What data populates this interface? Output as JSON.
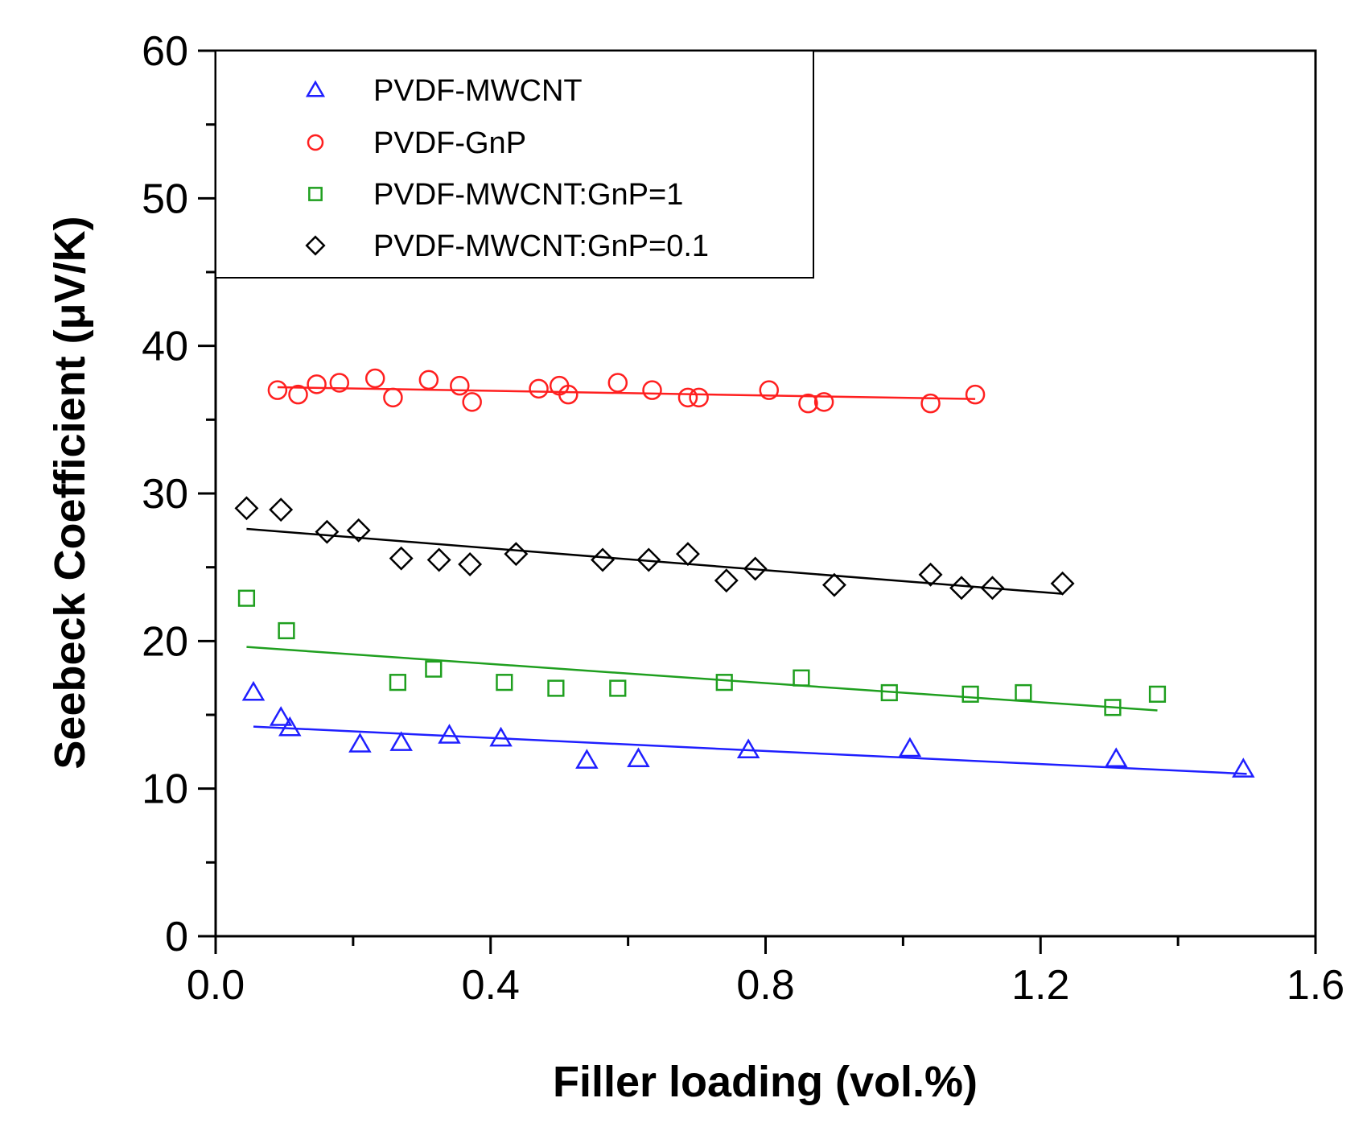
{
  "chart_data": {
    "type": "scatter",
    "title": "",
    "xlabel": "Filler loading (vol.%)",
    "ylabel": "Seebeck Coefficient (μV/K)",
    "xlim": [
      0.0,
      1.6
    ],
    "ylim": [
      0,
      60
    ],
    "x_ticks": [
      "0.0",
      "0.4",
      "0.8",
      "1.2",
      "1.6"
    ],
    "y_ticks": [
      "0",
      "10",
      "20",
      "30",
      "40",
      "50",
      "60"
    ],
    "grid": false,
    "legend_position": "top-left",
    "series": [
      {
        "name": "PVDF-MWCNT",
        "marker": "triangle",
        "color": "#1f1fff",
        "x": [
          0.055,
          0.095,
          0.108,
          0.21,
          0.27,
          0.34,
          0.415,
          0.54,
          0.615,
          0.775,
          1.01,
          1.31,
          1.495
        ],
        "y": [
          16.5,
          14.8,
          14.1,
          13.0,
          13.1,
          13.6,
          13.4,
          11.9,
          12.0,
          12.6,
          12.7,
          12.0,
          11.3
        ],
        "fit": {
          "x": [
            0.055,
            1.5
          ],
          "y": [
            14.2,
            11.0
          ]
        }
      },
      {
        "name": "PVDF-GnP",
        "marker": "circle",
        "color": "#ff1f1f",
        "x": [
          0.09,
          0.12,
          0.147,
          0.18,
          0.232,
          0.258,
          0.31,
          0.355,
          0.373,
          0.47,
          0.5,
          0.513,
          0.585,
          0.635,
          0.687,
          0.703,
          0.805,
          0.862,
          0.885,
          1.04,
          1.105
        ],
        "y": [
          37.0,
          36.7,
          37.4,
          37.5,
          37.8,
          36.5,
          37.7,
          37.3,
          36.2,
          37.1,
          37.3,
          36.7,
          37.5,
          37.0,
          36.5,
          36.5,
          37.0,
          36.1,
          36.2,
          36.1,
          36.7
        ],
        "fit": {
          "x": [
            0.09,
            1.105
          ],
          "y": [
            37.2,
            36.4
          ]
        }
      },
      {
        "name": "PVDF-MWCNT:GnP=1",
        "marker": "square",
        "color": "#1f9f1f",
        "x": [
          0.045,
          0.103,
          0.265,
          0.317,
          0.42,
          0.495,
          0.585,
          0.74,
          0.852,
          0.98,
          1.098,
          1.175,
          1.305,
          1.37
        ],
        "y": [
          22.9,
          20.7,
          17.2,
          18.1,
          17.2,
          16.8,
          16.8,
          17.2,
          17.5,
          16.5,
          16.4,
          16.5,
          15.5,
          16.4
        ],
        "fit": {
          "x": [
            0.045,
            1.37
          ],
          "y": [
            19.6,
            15.3
          ]
        }
      },
      {
        "name": "PVDF-MWCNT:GnP=0.1",
        "marker": "diamond",
        "color": "#000000",
        "x": [
          0.045,
          0.095,
          0.162,
          0.208,
          0.27,
          0.325,
          0.37,
          0.437,
          0.563,
          0.63,
          0.687,
          0.743,
          0.785,
          0.9,
          1.04,
          1.085,
          1.13,
          1.232
        ],
        "y": [
          29.0,
          28.9,
          27.4,
          27.5,
          25.6,
          25.5,
          25.2,
          25.9,
          25.5,
          25.5,
          25.9,
          24.1,
          24.9,
          23.8,
          24.5,
          23.6,
          23.6,
          23.9
        ],
        "fit": {
          "x": [
            0.045,
            1.232
          ],
          "y": [
            27.6,
            23.2
          ]
        }
      }
    ]
  }
}
